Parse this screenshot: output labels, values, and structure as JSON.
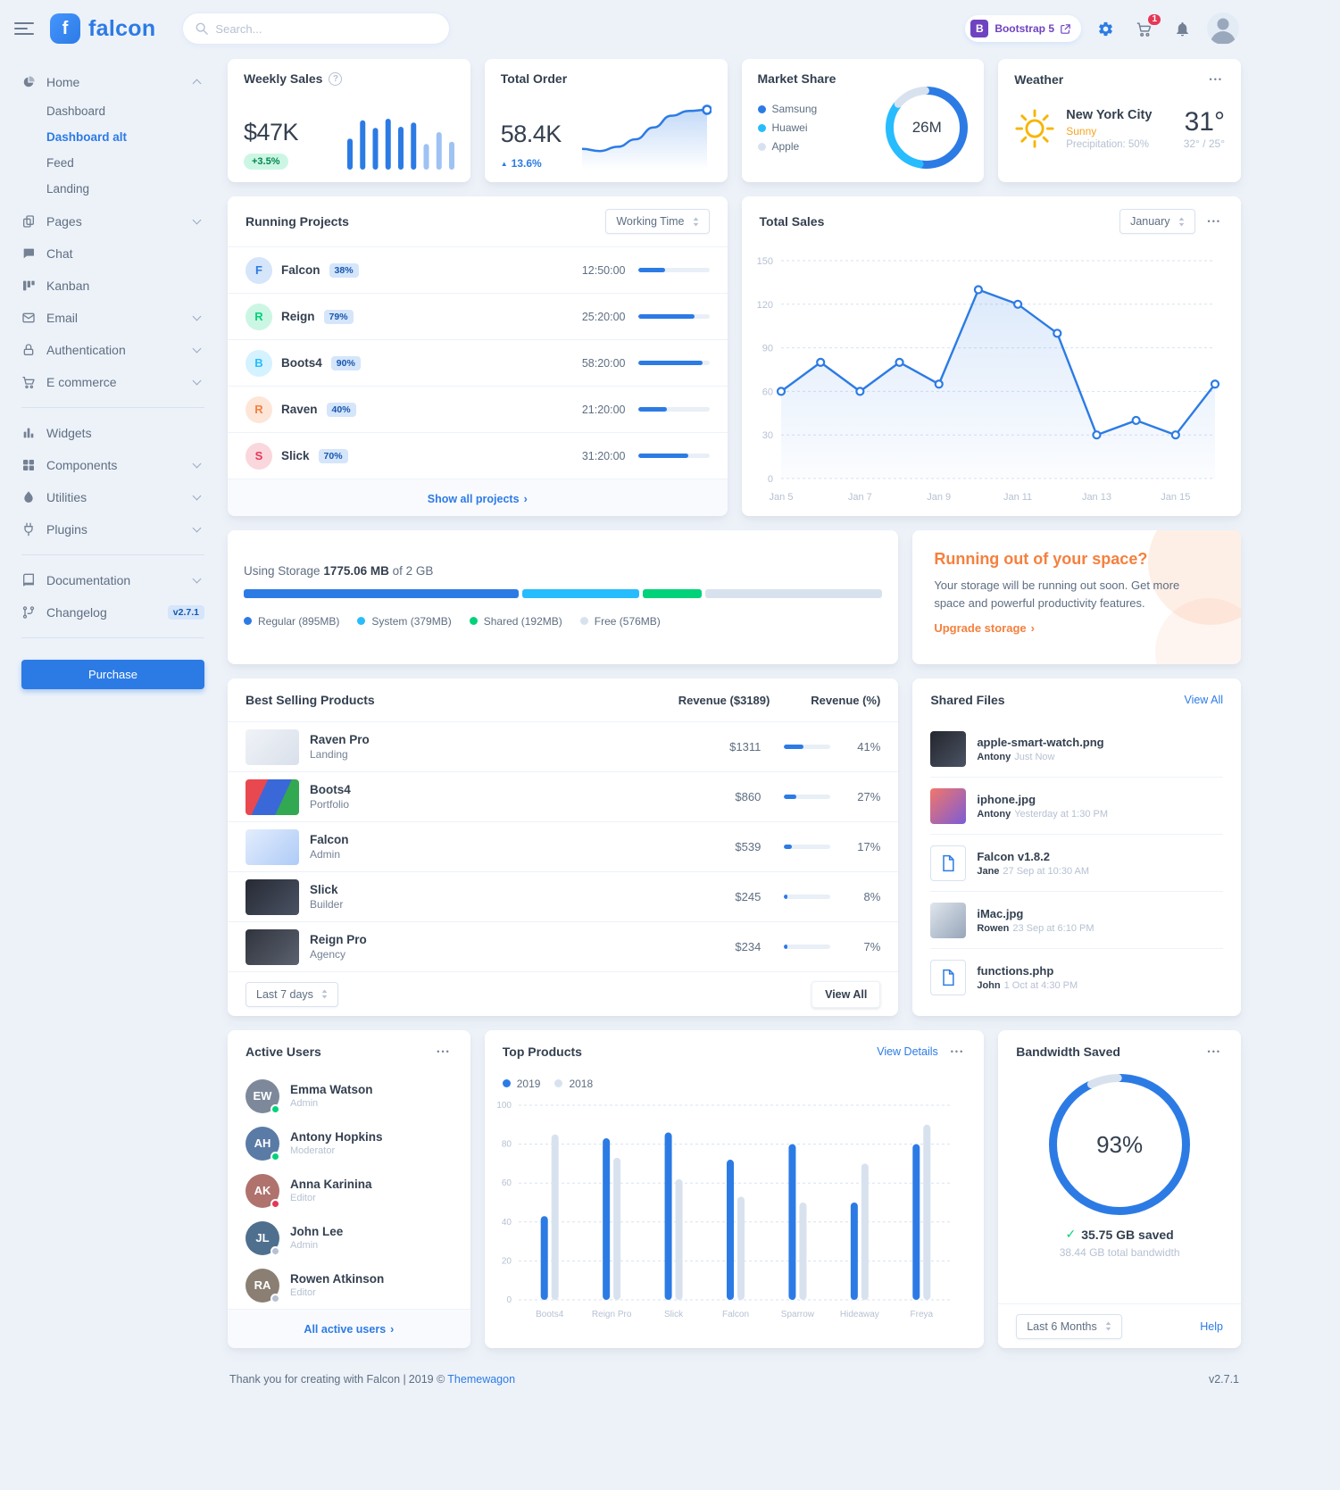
{
  "colors": {
    "primary": "#2c7be5",
    "success": "#00d27a",
    "info": "#27bcfd",
    "warning": "#f5803e",
    "danger": "#e63757",
    "gray_300": "#d8e2ef",
    "background": "#edf2f9"
  },
  "glyphs": {
    "brand_initial": "f",
    "bootstrap_b": "B",
    "dots_menu": "•••",
    "question_mark": "?",
    "caret_up": "▲",
    "chevron_right": "›",
    "check": "✓"
  },
  "topbar": {
    "brand": "falcon",
    "search_placeholder": "Search...",
    "bootstrap_badge": "Bootstrap 5",
    "cart_count": "1",
    "icons": [
      "menu-icon",
      "search-icon",
      "external-link-icon",
      "settings-gear-icon",
      "cart-icon",
      "bell-icon",
      "avatar"
    ]
  },
  "sidebar": {
    "items": [
      {
        "label": "Home",
        "icon": "pie-chart-icon",
        "expanded": true
      },
      {
        "label": "Pages",
        "icon": "pages-icon",
        "collapsible": true
      },
      {
        "label": "Chat",
        "icon": "chat-icon"
      },
      {
        "label": "Kanban",
        "icon": "kanban-icon"
      },
      {
        "label": "Email",
        "icon": "envelope-icon",
        "collapsible": true
      },
      {
        "label": "Authentication",
        "icon": "lock-icon",
        "collapsible": true
      },
      {
        "label": "E commerce",
        "icon": "shopping-cart-icon",
        "collapsible": true
      },
      {
        "label": "Widgets",
        "icon": "bar-chart-icon"
      },
      {
        "label": "Components",
        "icon": "components-icon",
        "collapsible": true
      },
      {
        "label": "Utilities",
        "icon": "utilities-icon",
        "collapsible": true
      },
      {
        "label": "Plugins",
        "icon": "plug-icon",
        "collapsible": true
      },
      {
        "label": "Documentation",
        "icon": "book-icon",
        "collapsible": true
      },
      {
        "label": "Changelog",
        "icon": "code-branch-icon"
      }
    ],
    "home_children": [
      {
        "label": "Dashboard",
        "active": false
      },
      {
        "label": "Dashboard alt",
        "active": true
      },
      {
        "label": "Feed",
        "active": false
      },
      {
        "label": "Landing",
        "active": false
      }
    ],
    "changelog_badge": "v2.7.1",
    "purchase_label": "Purchase"
  },
  "weekly_sales": {
    "title": "Weekly Sales",
    "value": "$47K",
    "badge": "+3.5%"
  },
  "total_order": {
    "title": "Total Order",
    "value": "58.4K",
    "badge": "13.6%",
    "badge_icon": "caret-up-icon"
  },
  "market_share": {
    "title": "Market Share",
    "center": "26M",
    "legend": [
      {
        "label": "Samsung",
        "color": "#2c7be5"
      },
      {
        "label": "Huawei",
        "color": "#27bcfd"
      },
      {
        "label": "Apple",
        "color": "#d8e2ef"
      }
    ]
  },
  "weather": {
    "title": "Weather",
    "city": "New York City",
    "condition": "Sunny",
    "precipitation": "Precipitation: 50%",
    "temperature": "31°",
    "high_low": "32° / 25°"
  },
  "running_projects": {
    "title": "Running Projects",
    "select_value": "Working Time",
    "footer_link": "Show all projects",
    "projects": [
      {
        "initial": "F",
        "name": "Falcon",
        "percent": "38%",
        "time": "12:50:00",
        "progress": 38,
        "color": "#2c7be5",
        "soft_color": "#d5e5fa"
      },
      {
        "initial": "R",
        "name": "Reign",
        "percent": "79%",
        "time": "25:20:00",
        "progress": 79,
        "color": "#00d27a",
        "soft_color": "#ccf6e4"
      },
      {
        "initial": "B",
        "name": "Boots4",
        "percent": "90%",
        "time": "58:20:00",
        "progress": 90,
        "color": "#27bcfd",
        "soft_color": "#d4f2ff"
      },
      {
        "initial": "R",
        "name": "Raven",
        "percent": "40%",
        "time": "21:20:00",
        "progress": 40,
        "color": "#f5803e",
        "soft_color": "#fde6d8"
      },
      {
        "initial": "S",
        "name": "Slick",
        "percent": "70%",
        "time": "31:20:00",
        "progress": 70,
        "color": "#e63757",
        "soft_color": "#fad7dd"
      }
    ]
  },
  "total_sales": {
    "title": "Total Sales",
    "select_value": "January"
  },
  "storage": {
    "prefix": "Using Storage",
    "used": "1775.06 MB",
    "suffix": "of 2 GB",
    "segments": [
      {
        "label": "Regular (895MB)",
        "mb": 895,
        "color": "#2c7be5"
      },
      {
        "label": "System (379MB)",
        "mb": 379,
        "color": "#27bcfd"
      },
      {
        "label": "Shared (192MB)",
        "mb": 192,
        "color": "#00d27a"
      },
      {
        "label": "Free (576MB)",
        "mb": 576,
        "color": "#d8e2ef"
      }
    ]
  },
  "space_warning": {
    "title": "Running out of your space?",
    "body": "Your storage will be running out soon. Get more space and powerful productivity features.",
    "link": "Upgrade storage"
  },
  "best_selling": {
    "title": "Best Selling Products",
    "revenue_header": "Revenue ($3189)",
    "percent_header": "Revenue (%)",
    "footer_select": "Last 7 days",
    "footer_button": "View All",
    "products": [
      {
        "name": "Raven Pro",
        "category": "Landing",
        "revenue": "$1311",
        "percent": "41%",
        "progress": 41
      },
      {
        "name": "Boots4",
        "category": "Portfolio",
        "revenue": "$860",
        "percent": "27%",
        "progress": 27
      },
      {
        "name": "Falcon",
        "category": "Admin",
        "revenue": "$539",
        "percent": "17%",
        "progress": 17
      },
      {
        "name": "Slick",
        "category": "Builder",
        "revenue": "$245",
        "percent": "8%",
        "progress": 8
      },
      {
        "name": "Reign Pro",
        "category": "Agency",
        "revenue": "$234",
        "percent": "7%",
        "progress": 7
      }
    ]
  },
  "shared_files": {
    "title": "Shared Files",
    "link": "View All",
    "files": [
      {
        "name": "apple-smart-watch.png",
        "user": "Antony",
        "time": "Just Now",
        "thumb": "watch-photo"
      },
      {
        "name": "iphone.jpg",
        "user": "Antony",
        "time": "Yesterday at 1:30 PM",
        "thumb": "iphone-photo"
      },
      {
        "name": "Falcon v1.8.2",
        "user": "Jane",
        "time": "27 Sep at 10:30 AM",
        "thumb": "file-icon"
      },
      {
        "name": "iMac.jpg",
        "user": "Rowen",
        "time": "23 Sep at 6:10 PM",
        "thumb": "imac-photo"
      },
      {
        "name": "functions.php",
        "user": "John",
        "time": "1 Oct at 4:30 PM",
        "thumb": "file-icon"
      }
    ]
  },
  "active_users": {
    "title": "Active Users",
    "footer_link": "All active users",
    "users": [
      {
        "name": "Emma Watson",
        "role": "Admin",
        "status": "online",
        "status_color": "#00d27a"
      },
      {
        "name": "Antony Hopkins",
        "role": "Moderator",
        "status": "online",
        "status_color": "#00d27a"
      },
      {
        "name": "Anna Karinina",
        "role": "Editor",
        "status": "busy",
        "status_color": "#e63757"
      },
      {
        "name": "John Lee",
        "role": "Admin",
        "status": "offline",
        "status_color": "#b6c1d2"
      },
      {
        "name": "Rowen Atkinson",
        "role": "Editor",
        "status": "offline",
        "status_color": "#b6c1d2"
      }
    ]
  },
  "top_products": {
    "title": "Top Products",
    "link": "View Details",
    "legend": [
      "2019",
      "2018"
    ]
  },
  "bandwidth": {
    "title": "Bandwidth Saved",
    "percent": "93%",
    "saved": "35.75 GB saved",
    "total": "38.44 GB total bandwidth",
    "footer_select": "Last 6 Months",
    "footer_link": "Help"
  },
  "page_footer": {
    "text": "Thank you for creating with Falcon |",
    "year": "2019 ©",
    "brand_link": "Themewagon",
    "version": "v2.7.1"
  },
  "chart_data": [
    {
      "id": "weekly_sales_bars",
      "type": "bar",
      "values": [
        58,
        92,
        78,
        95,
        80,
        88,
        48,
        70,
        52
      ],
      "color": "#2c7be5",
      "light_color": "#9ec2f3",
      "title": "Weekly Sales mini bars"
    },
    {
      "id": "total_order_line",
      "type": "area",
      "values": [
        22,
        18,
        26,
        40,
        62,
        84,
        93,
        95
      ],
      "color": "#2c7be5",
      "title": "Total Order trend"
    },
    {
      "id": "market_share_donut",
      "type": "pie",
      "labels": [
        "Samsung",
        "Huawei",
        "Apple"
      ],
      "values": [
        53,
        33,
        14
      ],
      "colors": [
        "#2c7be5",
        "#27bcfd",
        "#d8e2ef"
      ],
      "center_label": "26M",
      "title": "Market Share"
    },
    {
      "id": "total_sales_line",
      "type": "line",
      "title": "Total Sales",
      "x": [
        "Jan 5",
        "Jan 6",
        "Jan 7",
        "Jan 8",
        "Jan 9",
        "Jan 10",
        "Jan 11",
        "Jan 12",
        "Jan 13",
        "Jan 14",
        "Jan 15",
        "Jan 16"
      ],
      "tick_labels": [
        "Jan 5",
        "Jan 7",
        "Jan 9",
        "Jan 11",
        "Jan 13",
        "Jan 15"
      ],
      "values": [
        60,
        80,
        60,
        80,
        65,
        130,
        120,
        100,
        30,
        40,
        30,
        65
      ],
      "ylim": [
        0,
        150
      ],
      "yticks": [
        0,
        30,
        60,
        90,
        120,
        150
      ],
      "color": "#2c7be5",
      "grid": true,
      "legend_position": "none"
    },
    {
      "id": "top_products_bars",
      "type": "bar",
      "title": "Top Products",
      "categories": [
        "Boots4",
        "Reign Pro",
        "Slick",
        "Falcon",
        "Sparrow",
        "Hideaway",
        "Freya"
      ],
      "series": [
        {
          "name": "2019",
          "color": "#2c7be5",
          "values": [
            43,
            83,
            86,
            72,
            80,
            50,
            80
          ]
        },
        {
          "name": "2018",
          "color": "#d8e2ef",
          "values": [
            85,
            73,
            62,
            53,
            50,
            70,
            90
          ]
        }
      ],
      "ylim": [
        0,
        100
      ],
      "yticks": [
        0,
        20,
        40,
        60,
        80,
        100
      ],
      "grid": true,
      "legend_position": "top-left"
    },
    {
      "id": "bandwidth_ring",
      "type": "pie",
      "labels": [
        "saved",
        "remaining"
      ],
      "values": [
        93,
        7
      ],
      "colors": [
        "#2c7be5",
        "#d8e2ef"
      ],
      "center_label": "93%",
      "title": "Bandwidth Saved"
    }
  ]
}
